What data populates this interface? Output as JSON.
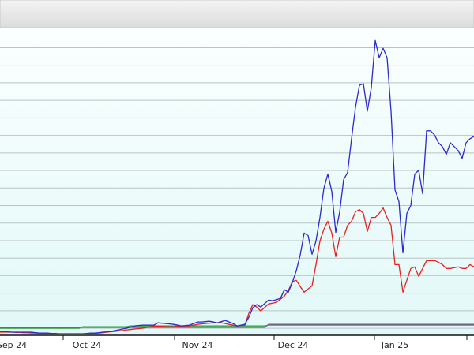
{
  "chart_data": {
    "type": "line",
    "xlim": [
      0,
      120
    ],
    "xticks": [
      {
        "value": 3,
        "label": "Sep 24"
      },
      {
        "value": 22,
        "label": "Oct 24"
      },
      {
        "value": 50,
        "label": "Nov 24"
      },
      {
        "value": 74.2,
        "label": "Dec 24"
      },
      {
        "value": 100,
        "label": "Jan 25"
      }
    ],
    "month_starts": [
      16,
      44.2,
      69.4,
      94.8,
      118.2
    ],
    "ylim": [
      -0.4,
      17.1
    ],
    "yticks": [
      0,
      1,
      2,
      3,
      4,
      5,
      6,
      7,
      8,
      9,
      10,
      11,
      12,
      13,
      14,
      15,
      16
    ],
    "ytick_labels": false,
    "grid": true,
    "series": [
      {
        "color": "#2a2ad0",
        "values": [
          -0.18,
          -0.18,
          -0.2,
          -0.22,
          -0.22,
          -0.22,
          -0.22,
          -0.22,
          -0.22,
          -0.25,
          -0.27,
          -0.27,
          -0.27,
          -0.29,
          -0.29,
          -0.31,
          -0.31,
          -0.31,
          -0.31,
          -0.31,
          -0.31,
          -0.31,
          -0.29,
          -0.27,
          -0.27,
          -0.25,
          -0.22,
          -0.2,
          -0.18,
          -0.13,
          -0.09,
          -0.04,
          0,
          0.07,
          0.13,
          0.16,
          0.18,
          0.18,
          0.18,
          0.18,
          0.31,
          0.29,
          0.27,
          0.25,
          0.22,
          0.18,
          0.13,
          0.16,
          0.18,
          0.27,
          0.36,
          0.36,
          0.38,
          0.4,
          0.36,
          0.31,
          0.38,
          0.45,
          0.36,
          0.27,
          0.13,
          0.18,
          0.22,
          0.63,
          1.17,
          1.35,
          1.21,
          1.41,
          1.61,
          1.57,
          1.64,
          1.7,
          2.2,
          2.06,
          2.6,
          3.27,
          4.17,
          5.43,
          5.29,
          4.22,
          4.98,
          6.32,
          7.98,
          8.79,
          7.8,
          5.47,
          6.64,
          8.48,
          8.88,
          10.81,
          12.6,
          13.86,
          13.95,
          12.38,
          13.72,
          16.41,
          15.43,
          15.96,
          15.43,
          12.38,
          7.89,
          7.22,
          4.3,
          6.55,
          7.0,
          8.79,
          9.01,
          7.67,
          11.26,
          11.26,
          11.03,
          10.58,
          10.36,
          9.91,
          10.58,
          10.36,
          10.13,
          9.69,
          10.58,
          10.81,
          10.94
        ]
      },
      {
        "color": "#e82020",
        "values": [
          -0.22,
          -0.22,
          -0.22,
          -0.22,
          -0.24,
          -0.24,
          -0.25,
          -0.25,
          -0.27,
          -0.27,
          -0.29,
          -0.29,
          -0.29,
          -0.31,
          -0.31,
          -0.33,
          -0.33,
          -0.33,
          -0.33,
          -0.33,
          -0.33,
          -0.33,
          -0.31,
          -0.31,
          -0.29,
          -0.27,
          -0.25,
          -0.22,
          -0.2,
          -0.18,
          -0.15,
          -0.13,
          -0.09,
          -0.07,
          -0.04,
          -0.02,
          0,
          0.04,
          0.09,
          0.11,
          0.13,
          0.11,
          0.09,
          0.09,
          0.09,
          0.11,
          0.13,
          0.13,
          0.13,
          0.18,
          0.22,
          0.25,
          0.27,
          0.29,
          0.31,
          0.31,
          0.31,
          0.27,
          0.22,
          0.18,
          0.13,
          0.16,
          0.18,
          0.85,
          1.35,
          1.21,
          0.99,
          1.19,
          1.39,
          1.43,
          1.48,
          1.66,
          1.84,
          2.15,
          2.65,
          2.74,
          2.38,
          2.06,
          2.24,
          2.42,
          3.63,
          4.98,
          5.65,
          6.1,
          5.43,
          4.08,
          5.2,
          5.2,
          5.87,
          6.1,
          6.64,
          6.77,
          6.55,
          5.52,
          6.32,
          6.32,
          6.55,
          6.86,
          6.32,
          5.87,
          3.63,
          3.63,
          2.06,
          2.74,
          3.41,
          3.5,
          2.96,
          3.41,
          3.86,
          3.86,
          3.86,
          3.77,
          3.63,
          3.41,
          3.41,
          3.45,
          3.5,
          3.41,
          3.41,
          3.63,
          3.5
        ]
      },
      {
        "color": "#30a040",
        "values": [
          0,
          0,
          0,
          0,
          0,
          0,
          0,
          0,
          0,
          0,
          0,
          0,
          0,
          0,
          0,
          0,
          0,
          0,
          0,
          0,
          0,
          0.09,
          0.09,
          0.09,
          0.09,
          0.09,
          0.09,
          0.09,
          0.09,
          0.09,
          0.09,
          0.09,
          0.09,
          0.13,
          0.13,
          0.13,
          0.13,
          0.13,
          0.13,
          0.13,
          0.13,
          0.13,
          0.13,
          0.13,
          0.13,
          0.13,
          0.13,
          0.13,
          0.13,
          0.13,
          0.13,
          0.13,
          0.13,
          0.13,
          0.13,
          0.13,
          0.13,
          0.13,
          0.13,
          0.13,
          0.13,
          0.13,
          0.13,
          0.13,
          0.13,
          0.13,
          0.13,
          0.13,
          0.18,
          0.18,
          0.18,
          0.18,
          0.18,
          0.18,
          0.18,
          0.18,
          0.18,
          0.18,
          0.18,
          0.18,
          0.18,
          0.18,
          0.18,
          0.18,
          0.18,
          0.18,
          0.18,
          0.18,
          0.18,
          0.18,
          0.18,
          0.18,
          0.18,
          0.18,
          0.18,
          0.18,
          0.18,
          0.18,
          0.18,
          0.18,
          0.18,
          0.18,
          0.18,
          0.18,
          0.18,
          0.18,
          0.18,
          0.18,
          0.18,
          0.18,
          0.18,
          0.18,
          0.18,
          0.18,
          0.18,
          0.18,
          0.18,
          0.18,
          0.18,
          0.18,
          0.18
        ]
      },
      {
        "color": "#b030c0",
        "values": [
          0.05,
          0.05,
          0.05,
          0.05,
          0.05,
          0.05,
          0.05,
          0.05,
          0.05,
          0.05,
          0.05,
          0.05,
          0.05,
          0.05,
          0.05,
          0.05,
          0.05,
          0.05,
          0.05,
          0.05,
          0.05,
          0.05,
          0.05,
          0.05,
          0.05,
          0.05,
          0.05,
          0.05,
          0.05,
          0.05,
          0.05,
          0.05,
          0.05,
          0.05,
          0.05,
          0.05,
          0.05,
          0.05,
          0.05,
          0.05,
          0.05,
          0.05,
          0.05,
          0.05,
          0.05,
          0.05,
          0.05,
          0.05,
          0.05,
          0.05,
          0.05,
          0.05,
          0.05,
          0.05,
          0.05,
          0.05,
          0.05,
          0.05,
          0.05,
          0.05,
          0.05,
          0.05,
          0.05,
          0.05,
          0.05,
          0.05,
          0.05,
          0.05,
          0.22,
          0.22,
          0.22,
          0.22,
          0.22,
          0.22,
          0.22,
          0.22,
          0.22,
          0.22,
          0.22,
          0.22,
          0.22,
          0.22,
          0.22,
          0.22,
          0.22,
          0.22,
          0.22,
          0.22,
          0.22,
          0.22,
          0.22,
          0.22,
          0.22,
          0.22,
          0.22,
          0.22,
          0.22,
          0.22,
          0.22,
          0.22,
          0.22,
          0.22,
          0.22,
          0.22,
          0.22,
          0.22,
          0.22,
          0.22,
          0.22,
          0.22,
          0.22,
          0.22,
          0.22,
          0.22,
          0.22,
          0.22,
          0.22,
          0.22,
          0.22,
          0.22,
          0.22
        ]
      }
    ]
  }
}
